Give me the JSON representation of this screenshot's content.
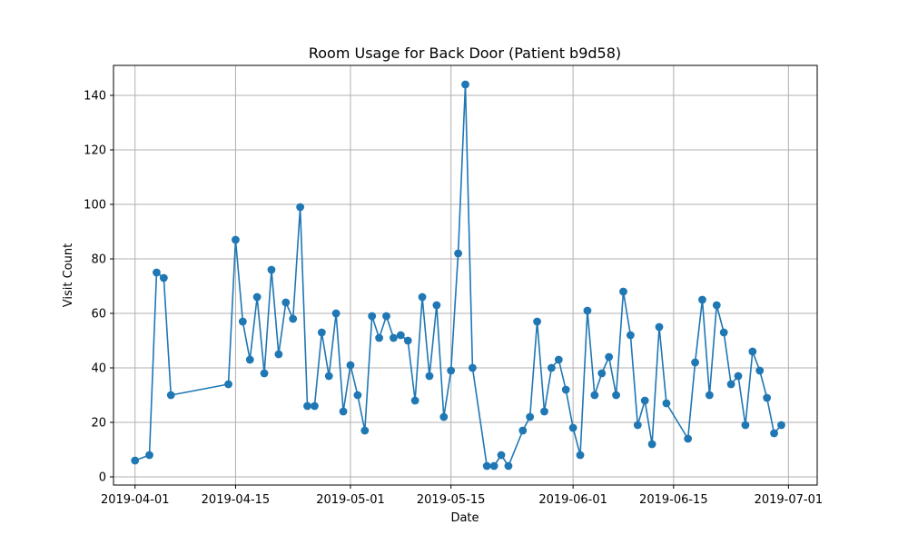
{
  "chart_data": {
    "type": "line",
    "title": "Room Usage for Back Door (Patient b9d58)",
    "xlabel": "Date",
    "ylabel": "Visit Count",
    "xlim": [
      "2019-03-29",
      "2019-07-05"
    ],
    "ylim": [
      -3,
      151
    ],
    "x_ticks": [
      "2019-04-01",
      "2019-04-15",
      "2019-05-01",
      "2019-05-15",
      "2019-06-01",
      "2019-06-15",
      "2019-07-01"
    ],
    "y_ticks": [
      0,
      20,
      40,
      60,
      80,
      100,
      120,
      140
    ],
    "grid": true,
    "series": [
      {
        "color": "#1f77b4",
        "marker": "circle",
        "points": [
          [
            "2019-04-01",
            6
          ],
          [
            "2019-04-03",
            8
          ],
          [
            "2019-04-04",
            75
          ],
          [
            "2019-04-05",
            73
          ],
          [
            "2019-04-06",
            30
          ],
          [
            "2019-04-14",
            34
          ],
          [
            "2019-04-15",
            87
          ],
          [
            "2019-04-16",
            57
          ],
          [
            "2019-04-17",
            43
          ],
          [
            "2019-04-18",
            66
          ],
          [
            "2019-04-19",
            38
          ],
          [
            "2019-04-20",
            76
          ],
          [
            "2019-04-21",
            45
          ],
          [
            "2019-04-22",
            64
          ],
          [
            "2019-04-23",
            58
          ],
          [
            "2019-04-24",
            99
          ],
          [
            "2019-04-25",
            26
          ],
          [
            "2019-04-26",
            26
          ],
          [
            "2019-04-27",
            53
          ],
          [
            "2019-04-28",
            37
          ],
          [
            "2019-04-29",
            60
          ],
          [
            "2019-04-30",
            24
          ],
          [
            "2019-05-01",
            41
          ],
          [
            "2019-05-02",
            30
          ],
          [
            "2019-05-03",
            17
          ],
          [
            "2019-05-04",
            59
          ],
          [
            "2019-05-05",
            51
          ],
          [
            "2019-05-06",
            59
          ],
          [
            "2019-05-07",
            51
          ],
          [
            "2019-05-08",
            52
          ],
          [
            "2019-05-09",
            50
          ],
          [
            "2019-05-10",
            28
          ],
          [
            "2019-05-11",
            66
          ],
          [
            "2019-05-12",
            37
          ],
          [
            "2019-05-13",
            63
          ],
          [
            "2019-05-14",
            22
          ],
          [
            "2019-05-15",
            39
          ],
          [
            "2019-05-16",
            82
          ],
          [
            "2019-05-17",
            144
          ],
          [
            "2019-05-18",
            40
          ],
          [
            "2019-05-20",
            4
          ],
          [
            "2019-05-21",
            4
          ],
          [
            "2019-05-22",
            8
          ],
          [
            "2019-05-23",
            4
          ],
          [
            "2019-05-25",
            17
          ],
          [
            "2019-05-26",
            22
          ],
          [
            "2019-05-27",
            57
          ],
          [
            "2019-05-28",
            24
          ],
          [
            "2019-05-29",
            40
          ],
          [
            "2019-05-30",
            43
          ],
          [
            "2019-05-31",
            32
          ],
          [
            "2019-06-01",
            18
          ],
          [
            "2019-06-02",
            8
          ],
          [
            "2019-06-03",
            61
          ],
          [
            "2019-06-04",
            30
          ],
          [
            "2019-06-05",
            38
          ],
          [
            "2019-06-06",
            44
          ],
          [
            "2019-06-07",
            30
          ],
          [
            "2019-06-08",
            68
          ],
          [
            "2019-06-09",
            52
          ],
          [
            "2019-06-10",
            19
          ],
          [
            "2019-06-11",
            28
          ],
          [
            "2019-06-12",
            12
          ],
          [
            "2019-06-13",
            55
          ],
          [
            "2019-06-14",
            27
          ],
          [
            "2019-06-17",
            14
          ],
          [
            "2019-06-18",
            42
          ],
          [
            "2019-06-19",
            65
          ],
          [
            "2019-06-20",
            30
          ],
          [
            "2019-06-21",
            63
          ],
          [
            "2019-06-22",
            53
          ],
          [
            "2019-06-23",
            34
          ],
          [
            "2019-06-24",
            37
          ],
          [
            "2019-06-25",
            19
          ],
          [
            "2019-06-26",
            46
          ],
          [
            "2019-06-27",
            39
          ],
          [
            "2019-06-28",
            29
          ],
          [
            "2019-06-29",
            16
          ],
          [
            "2019-06-30",
            19
          ]
        ]
      }
    ]
  }
}
